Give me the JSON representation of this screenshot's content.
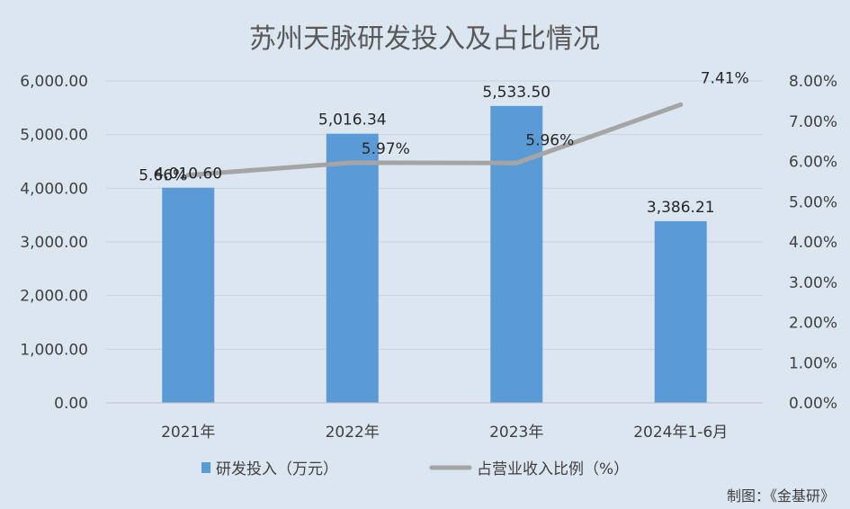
{
  "chart_data": {
    "type": "bar",
    "title": "苏州天脉研发投入及占比情况",
    "categories": [
      "2021年",
      "2022年",
      "2023年",
      "2024年1-6月"
    ],
    "series": [
      {
        "name": "研发投入（万元）",
        "type": "bar",
        "axis": "left",
        "color": "#5b9bd5",
        "values": [
          4010.6,
          5016.34,
          5533.5,
          3386.21
        ],
        "labels": [
          "4,010.60",
          "5,016.34",
          "5,533.50",
          "3,386.21"
        ]
      },
      {
        "name": "占营业收入比例（%）",
        "type": "line",
        "axis": "right",
        "color": "#a5a5a5",
        "values": [
          5.66,
          5.97,
          5.96,
          7.41
        ],
        "labels": [
          "5.66%",
          "5.97%",
          "5.96%",
          "7.41%"
        ]
      }
    ],
    "y_left": {
      "range": [
        0,
        6000
      ],
      "ticks": [
        "0.00",
        "1,000.00",
        "2,000.00",
        "3,000.00",
        "4,000.00",
        "5,000.00",
        "6,000.00"
      ]
    },
    "y_right": {
      "range": [
        0,
        8
      ],
      "ticks": [
        "0.00%",
        "1.00%",
        "2.00%",
        "3.00%",
        "4.00%",
        "5.00%",
        "6.00%",
        "7.00%",
        "8.00%"
      ]
    },
    "grid": true,
    "legend_position": "bottom",
    "source_note": "制图：《金基研》"
  }
}
